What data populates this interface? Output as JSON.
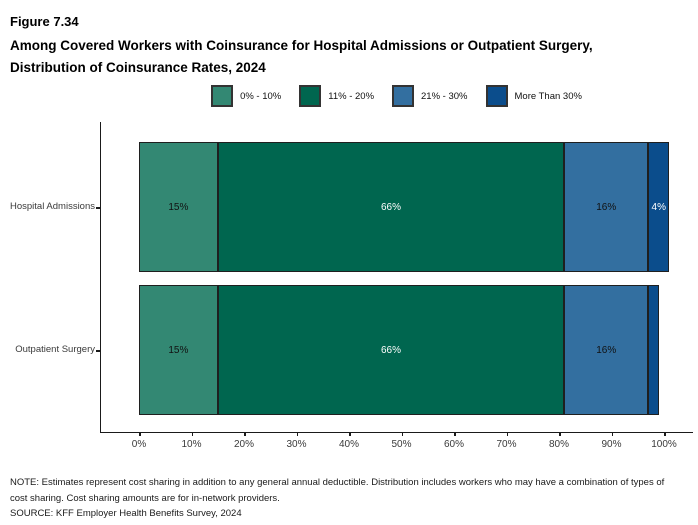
{
  "header": {
    "figure_label": "Figure 7.34",
    "title": "Among Covered Workers with Coinsurance for Hospital Admissions or Outpatient Surgery, Distribution of Coinsurance Rates, 2024"
  },
  "chart_data": {
    "type": "bar",
    "variant": "horizontal-stacked",
    "title": "Among Covered Workers with Coinsurance for Hospital Admissions or Outpatient Surgery, Distribution of Coinsurance Rates, 2024",
    "categories": [
      "Hospital Admissions",
      "Outpatient Surgery"
    ],
    "series": [
      {
        "name": "0% - 10%",
        "color": "#338873",
        "label_color": "#111111",
        "values": [
          15,
          15
        ]
      },
      {
        "name": "11% - 20%",
        "color": "#00664F",
        "label_color": "#ffffff",
        "values": [
          66,
          66
        ]
      },
      {
        "name": "21% - 30%",
        "color": "#336FA0",
        "label_color": "#111111",
        "values": [
          16,
          16
        ]
      },
      {
        "name": "More Than 30%",
        "color": "#0B4D8C",
        "label_color": "#ffffff",
        "values": [
          4,
          2
        ]
      }
    ],
    "data_labels": [
      [
        "15%",
        "66%",
        "16%",
        "4%"
      ],
      [
        "15%",
        "66%",
        "16%",
        ""
      ]
    ],
    "x_ticks": [
      "0%",
      "10%",
      "20%",
      "30%",
      "40%",
      "50%",
      "60%",
      "70%",
      "80%",
      "90%",
      "100%"
    ],
    "xlim": [
      0,
      100
    ],
    "grid": false,
    "legend_position": "top-center"
  },
  "footer": {
    "note": "NOTE: Estimates represent cost sharing in addition to any general annual deductible. Distribution includes workers who may have a combination of types of cost sharing. Cost sharing amounts are for in-network providers.",
    "source": "SOURCE: KFF Employer Health Benefits Survey, 2024"
  }
}
